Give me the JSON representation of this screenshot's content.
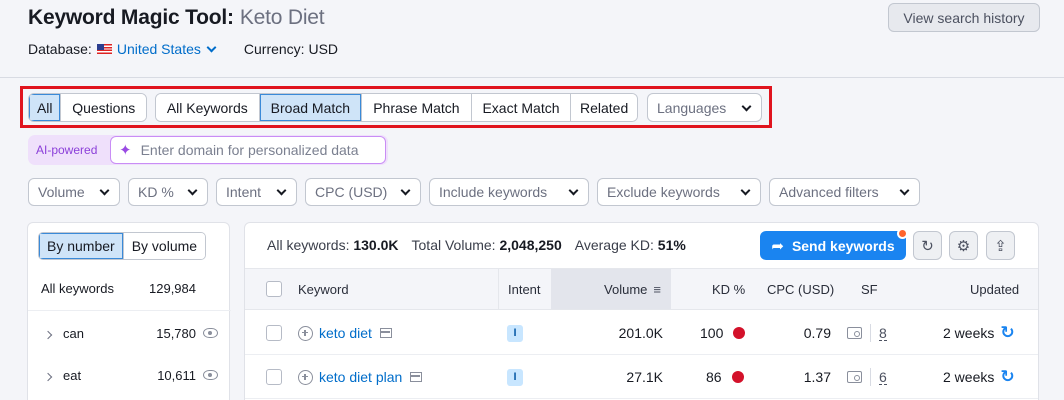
{
  "header": {
    "title": "Keyword Magic Tool:",
    "subtitle": "Keto Diet",
    "database_label": "Database:",
    "database_value": "United States",
    "currency_label": "Currency: USD",
    "history_button": "View search history"
  },
  "match_tabs": {
    "group1": [
      "All",
      "Questions"
    ],
    "group2": [
      "All Keywords",
      "Broad Match",
      "Phrase Match",
      "Exact Match",
      "Related"
    ],
    "active": [
      "All",
      "Broad Match"
    ],
    "languages": "Languages"
  },
  "ai": {
    "label": "AI-powered",
    "placeholder": "Enter domain for personalized data"
  },
  "filters": [
    "Volume",
    "KD %",
    "Intent",
    "CPC (USD)",
    "Include keywords",
    "Exclude keywords",
    "Advanced filters"
  ],
  "sidebar": {
    "toggle": [
      "By number",
      "By volume"
    ],
    "active_toggle": "By number",
    "header_label": "All keywords",
    "header_count": "129,984",
    "groups": [
      {
        "label": "can",
        "count": "15,780"
      },
      {
        "label": "eat",
        "count": "10,611"
      }
    ]
  },
  "stats": {
    "all_keywords_label": "All keywords:",
    "all_keywords_value": "130.0K",
    "total_volume_label": "Total Volume:",
    "total_volume_value": "2,048,250",
    "avg_kd_label": "Average KD:",
    "avg_kd_value": "51%"
  },
  "toolbar": {
    "send_label": "Send keywords"
  },
  "table": {
    "columns": [
      "Keyword",
      "Intent",
      "Volume",
      "KD %",
      "CPC (USD)",
      "SF",
      "Updated"
    ],
    "rows": [
      {
        "keyword": "keto diet",
        "intent": "I",
        "volume": "201.0K",
        "kd": "100",
        "cpc": "0.79",
        "sf": "8",
        "updated": "2 weeks"
      },
      {
        "keyword": "keto diet plan",
        "intent": "I",
        "volume": "27.1K",
        "kd": "86",
        "cpc": "1.37",
        "sf": "6",
        "updated": "2 weeks"
      }
    ]
  },
  "colors": {
    "accent": "#1a84f0",
    "highlight_box": "#e0141e",
    "kd_dot": "#d3112a",
    "ai_purple": "#8b3fd9"
  }
}
